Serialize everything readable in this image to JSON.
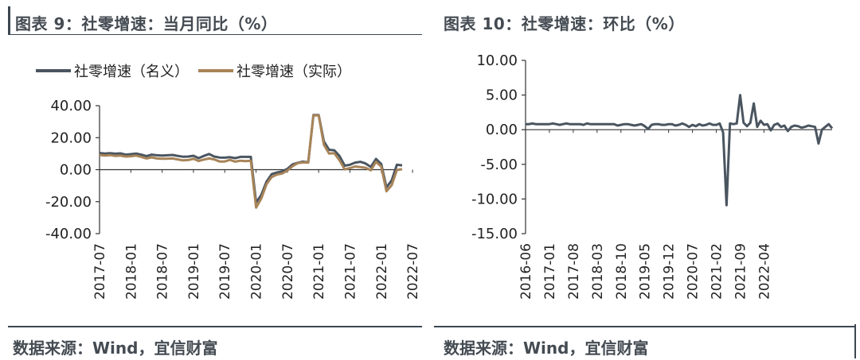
{
  "colors": {
    "nominal": "#4a5560",
    "real": "#a88458",
    "axis": "#333333",
    "title": "#444b52"
  },
  "left": {
    "title": "图表 9：社零增速：当月同比（%）",
    "source": "数据来源：Wind，宜信财富",
    "legend": [
      "社零增速（名义）",
      "社零增速（实际）"
    ]
  },
  "right": {
    "title": "图表 10：社零增速：环比（%）",
    "source": "数据来源：Wind，宜信财富"
  },
  "chart_data": [
    {
      "type": "line",
      "title": "社零增速：当月同比（%）",
      "x_start": "2017-07",
      "x_ticks": [
        "2017-07",
        "2018-01",
        "2018-07",
        "2019-01",
        "2019-07",
        "2020-01",
        "2020-07",
        "2021-01",
        "2021-07",
        "2022-01",
        "2022-07"
      ],
      "y_ticks": [
        "40.00",
        "20.00",
        "0.00",
        "-20.00",
        "-40.00"
      ],
      "ylim": [
        -40,
        40
      ],
      "series": [
        {
          "name": "社零增速（名义）",
          "values": [
            10.4,
            10.1,
            10.3,
            10.0,
            10.2,
            9.4,
            9.7,
            10.1,
            9.4,
            8.5,
            9.4,
            9.0,
            8.8,
            9.0,
            9.2,
            8.6,
            8.1,
            8.2,
            8.7,
            7.2,
            8.6,
            9.8,
            8.2,
            7.6,
            7.5,
            7.8,
            7.2,
            8.0,
            8.0,
            8.0,
            -20.5,
            -15.8,
            -7.5,
            -2.8,
            -1.8,
            -1.1,
            0.5,
            3.3,
            4.3,
            5.0,
            4.6,
            34.2,
            34.2,
            17.7,
            12.4,
            12.1,
            8.5,
            2.5,
            3.1,
            4.4,
            4.9,
            3.9,
            1.7,
            6.7,
            3.5,
            -11.1,
            -6.7,
            3.1,
            2.7
          ]
        },
        {
          "name": "社零增速（实际）",
          "values": [
            9.2,
            8.8,
            9.1,
            8.6,
            8.8,
            8.2,
            8.4,
            8.8,
            8.0,
            7.0,
            7.7,
            7.0,
            6.8,
            6.9,
            7.0,
            6.4,
            5.8,
            6.0,
            6.8,
            5.4,
            6.3,
            7.0,
            6.4,
            5.1,
            5.1,
            6.1,
            5.0,
            5.6,
            5.3,
            5.6,
            -23.7,
            -18.1,
            -9.1,
            -4.6,
            -3.1,
            -2.4,
            -0.6,
            2.2,
            4.1,
            4.5,
            4.4,
            33.9,
            33.9,
            15.6,
            10.1,
            10.3,
            5.8,
            0.2,
            1.0,
            2.0,
            1.6,
            1.2,
            -0.4,
            4.9,
            1.9,
            -13.5,
            -9.7,
            -0.2,
            0.3
          ]
        }
      ]
    },
    {
      "type": "line",
      "title": "社零增速：环比（%）",
      "x_start": "2016-06",
      "x_ticks": [
        "2016-06",
        "2017-01",
        "2017-08",
        "2018-03",
        "2018-10",
        "2019-05",
        "2019-12",
        "2020-07",
        "2021-02",
        "2021-09",
        "2022-04"
      ],
      "y_ticks": [
        "10.00",
        "5.00",
        "0.00",
        "-5.00",
        "-10.00",
        "-15.00"
      ],
      "ylim": [
        -15,
        10
      ],
      "series": [
        {
          "name": "社零增速：环比",
          "values": [
            0.8,
            0.8,
            0.9,
            0.8,
            0.8,
            0.8,
            0.8,
            0.8,
            0.9,
            0.8,
            0.7,
            0.8,
            0.9,
            0.8,
            0.8,
            0.8,
            0.8,
            0.7,
            0.9,
            0.8,
            0.8,
            0.8,
            0.8,
            0.8,
            0.8,
            0.8,
            0.8,
            0.6,
            0.7,
            0.8,
            0.8,
            0.7,
            0.6,
            0.7,
            0.8,
            0.5,
            0.1,
            0.7,
            0.8,
            0.8,
            0.7,
            0.7,
            0.8,
            0.8,
            0.6,
            0.7,
            0.9,
            0.7,
            0.4,
            0.7,
            0.5,
            0.8,
            0.6,
            0.7,
            0.9,
            0.7,
            0.7,
            0.9,
            -0.4,
            -10.9,
            0.9,
            0.8,
            0.9,
            5.0,
            1.0,
            0.5,
            1.0,
            3.8,
            0.4,
            1.3,
            0.7,
            0.8,
            -0.1,
            0.7,
            0.9,
            0.4,
            0.6,
            -0.2,
            0.4,
            0.6,
            0.5,
            0.3,
            0.4,
            0.6,
            0.5,
            0.4,
            -2.0,
            0.0,
            0.4,
            0.8,
            0.2
          ]
        }
      ]
    }
  ]
}
